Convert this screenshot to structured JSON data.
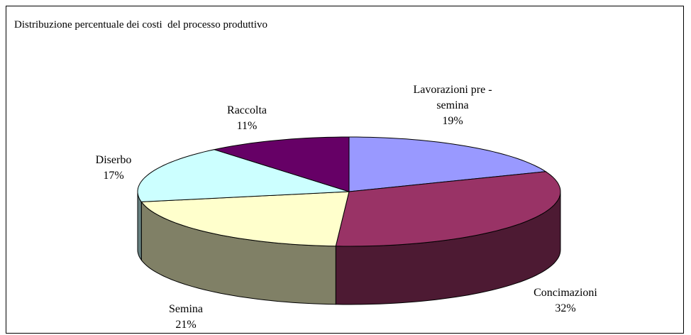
{
  "chart_data": {
    "type": "pie3d",
    "title": "Distribuzione percentuale dei costi  del processo produttivo",
    "categories": [
      "Lavorazioni pre - semina",
      "Concimazioni",
      "Semina",
      "Diserbo",
      "Raccolta"
    ],
    "values": [
      19,
      32,
      21,
      17,
      11
    ],
    "value_labels": [
      "19%",
      "32%",
      "21%",
      "17%",
      "11%"
    ],
    "colors": [
      "#9999ff",
      "#993366",
      "#ffffcc",
      "#ccffff",
      "#660066"
    ]
  }
}
